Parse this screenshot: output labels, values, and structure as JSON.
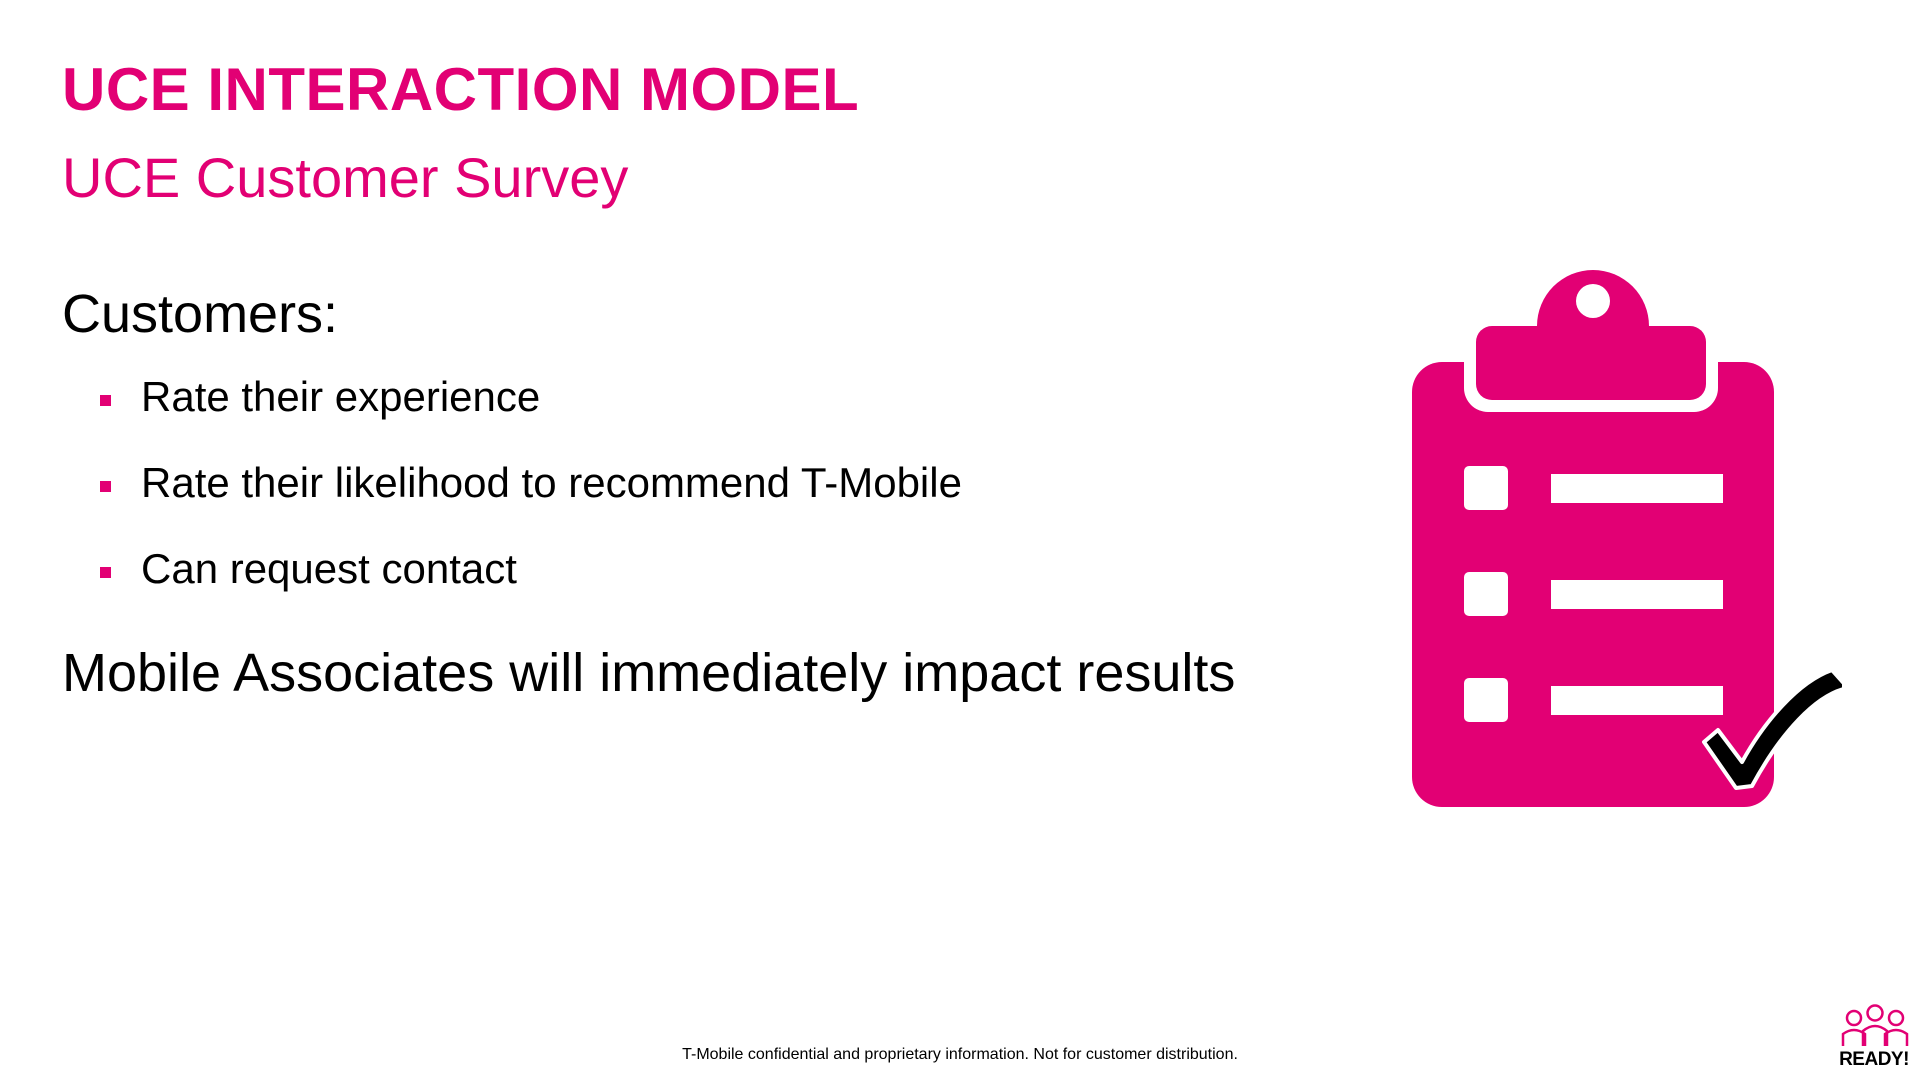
{
  "header": {
    "title": "UCE INTERACTION MODEL",
    "subtitle": "UCE Customer Survey"
  },
  "body": {
    "customers_heading": "Customers:",
    "bullets": [
      "Rate their experience",
      "Rate their likelihood to recommend T-Mobile",
      "Can request contact"
    ],
    "associates_statement": "Mobile Associates will immediately impact results"
  },
  "illustration": {
    "icon": "clipboard-checklist-icon",
    "color": "#e20074",
    "checkmark_color": "#000000"
  },
  "footer": {
    "disclaimer": "T-Mobile confidential and proprietary information. Not for customer distribution.",
    "logo_label": "READY!",
    "logo_icon": "people-group-icon"
  },
  "colors": {
    "accent": "#e20074",
    "text": "#000000",
    "background": "#ffffff"
  }
}
